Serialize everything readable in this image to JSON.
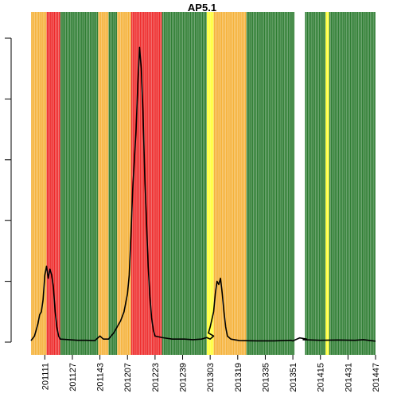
{
  "chart_data": {
    "type": "line",
    "title": "AP5.1",
    "xlabel": "",
    "ylabel": "",
    "x_range": [
      201103,
      201447
    ],
    "x_tick_labels": [
      "201111",
      "201127",
      "201143",
      "201207",
      "201223",
      "201239",
      "201303",
      "201319",
      "201335",
      "201351",
      "201415",
      "201431",
      "201447"
    ],
    "y_range": [
      0,
      1.0
    ],
    "y_tick_count": 6,
    "y_tick_labels_visible": false,
    "grid": false,
    "legend": "none",
    "status_colors": {
      "orange": "#f5b23a",
      "red": "#ee2b2b",
      "green": "#2e7d32",
      "yellow": "#ffff33",
      "white": "#ffffff"
    },
    "status_bands": [
      {
        "from": 201103,
        "to": 201112,
        "status": "orange"
      },
      {
        "from": 201112,
        "to": 201120,
        "status": "red"
      },
      {
        "from": 201120,
        "to": 201142,
        "status": "green"
      },
      {
        "from": 201142,
        "to": 201148,
        "status": "orange"
      },
      {
        "from": 201148,
        "to": 201153,
        "status": "green"
      },
      {
        "from": 201153,
        "to": 201209,
        "status": "orange"
      },
      {
        "from": 201209,
        "to": 201227,
        "status": "red"
      },
      {
        "from": 201227,
        "to": 201253,
        "status": "green"
      },
      {
        "from": 201253,
        "to": 201257,
        "status": "yellow"
      },
      {
        "from": 201257,
        "to": 201324,
        "status": "orange"
      },
      {
        "from": 201324,
        "to": 201352,
        "status": "green"
      },
      {
        "from": 201352,
        "to": 201359,
        "status": "white"
      },
      {
        "from": 201359,
        "to": 201406,
        "status": "orange"
      },
      {
        "from": 201406,
        "to": 201418,
        "status": "green"
      },
      {
        "from": 201418,
        "to": 201420,
        "status": "yellow"
      },
      {
        "from": 201420,
        "to": 201447,
        "status": "green"
      }
    ],
    "series": [
      {
        "color": "#000000",
        "points": [
          [
            201103,
            0.005
          ],
          [
            201105,
            0.02
          ],
          [
            201107,
            0.06
          ],
          [
            201108,
            0.09
          ],
          [
            201109,
            0.1
          ],
          [
            201110,
            0.14
          ],
          [
            201111,
            0.22
          ],
          [
            201112,
            0.25
          ],
          [
            201113,
            0.21
          ],
          [
            201114,
            0.24
          ],
          [
            201115,
            0.22
          ],
          [
            201116,
            0.18
          ],
          [
            201117,
            0.1
          ],
          [
            201118,
            0.05
          ],
          [
            201119,
            0.02
          ],
          [
            201120,
            0.01
          ],
          [
            201125,
            0.008
          ],
          [
            201130,
            0.006
          ],
          [
            201135,
            0.006
          ],
          [
            201140,
            0.005
          ],
          [
            201143,
            0.02
          ],
          [
            201145,
            0.01
          ],
          [
            201148,
            0.01
          ],
          [
            201151,
            0.03
          ],
          [
            201201,
            0.05
          ],
          [
            201203,
            0.07
          ],
          [
            201205,
            0.1
          ],
          [
            201207,
            0.16
          ],
          [
            201208,
            0.22
          ],
          [
            201209,
            0.35
          ],
          [
            201210,
            0.5
          ],
          [
            201211,
            0.6
          ],
          [
            201212,
            0.7
          ],
          [
            201213,
            0.85
          ],
          [
            201214,
            0.97
          ],
          [
            201215,
            0.9
          ],
          [
            201216,
            0.76
          ],
          [
            201217,
            0.55
          ],
          [
            201218,
            0.4
          ],
          [
            201219,
            0.25
          ],
          [
            201220,
            0.15
          ],
          [
            201221,
            0.08
          ],
          [
            201222,
            0.04
          ],
          [
            201223,
            0.02
          ],
          [
            201227,
            0.015
          ],
          [
            201233,
            0.01
          ],
          [
            201240,
            0.01
          ],
          [
            201245,
            0.008
          ],
          [
            201250,
            0.01
          ],
          [
            201253,
            0.015
          ],
          [
            201255,
            0.01
          ],
          [
            201257,
            0.02
          ],
          [
            201302,
            0.03
          ],
          [
            201303,
            0.05
          ],
          [
            201305,
            0.1
          ],
          [
            201306,
            0.16
          ],
          [
            201307,
            0.2
          ],
          [
            201308,
            0.19
          ],
          [
            201309,
            0.21
          ],
          [
            201310,
            0.16
          ],
          [
            201311,
            0.1
          ],
          [
            201312,
            0.05
          ],
          [
            201313,
            0.02
          ],
          [
            201315,
            0.01
          ],
          [
            201320,
            0.005
          ],
          [
            201330,
            0.004
          ],
          [
            201340,
            0.004
          ],
          [
            201350,
            0.006
          ],
          [
            201351,
            0.004
          ],
          [
            201355,
            0.014
          ],
          [
            201359,
            0.01
          ],
          [
            201405,
            0.008
          ],
          [
            201415,
            0.006
          ],
          [
            201425,
            0.007
          ],
          [
            201435,
            0.006
          ],
          [
            201440,
            0.008
          ],
          [
            201447,
            0.003
          ]
        ]
      }
    ]
  }
}
